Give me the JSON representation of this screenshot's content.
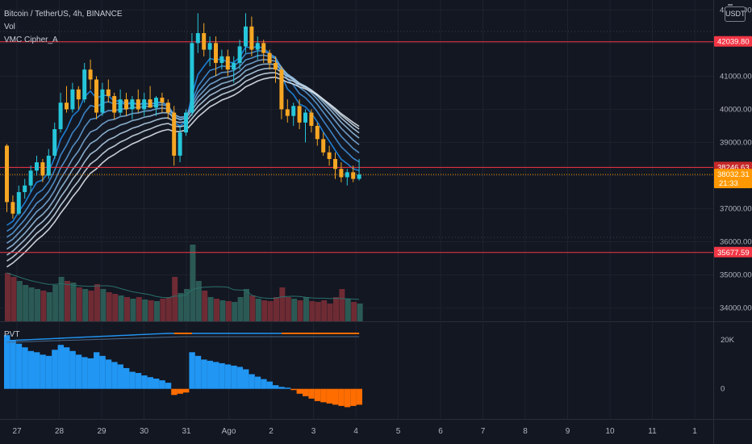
{
  "header": {
    "symbol_line": "Bitcoin / TetherUS, 4h, BINANCE",
    "vol_label": "Vol",
    "vmc_label": "VMC Cipher_A",
    "pvt_label": "PVT",
    "unit": "USDT"
  },
  "colors": {
    "background": "#131722",
    "up": "#26c6da",
    "down": "#f5a623",
    "level_line": "#f23645",
    "vol_up": "#2b5a55",
    "vol_down": "#6e2b34",
    "osc_pos": "#2196f3",
    "osc_neg": "#ff6d00",
    "pvt_line": "#2196f3",
    "price_label_bg": "#ff9800",
    "text": "#b2b5be"
  },
  "chart_data": [
    {
      "type": "candlestick",
      "title": "Bitcoin / TetherUS, 4h, BINANCE",
      "x_tick_labels": [
        "27",
        "28",
        "29",
        "30",
        "31",
        "Ago",
        "2",
        "3",
        "4",
        "5",
        "6",
        "7",
        "8",
        "9",
        "10",
        "11",
        "1"
      ],
      "y_ticks": [
        34000,
        35000,
        36000,
        37000,
        38000,
        39000,
        40000,
        41000,
        42000,
        43000
      ],
      "ylim": [
        33600,
        43300
      ],
      "candles": [
        [
          38900,
          38950,
          36900,
          37200
        ],
        [
          37200,
          37400,
          36700,
          36850
        ],
        [
          36850,
          37700,
          36800,
          37500
        ],
        [
          37500,
          37900,
          37300,
          37700
        ],
        [
          37700,
          38300,
          37500,
          38150
        ],
        [
          38150,
          38600,
          38000,
          38400
        ],
        [
          38400,
          38500,
          37800,
          38000
        ],
        [
          38000,
          38800,
          37900,
          38600
        ],
        [
          38600,
          39600,
          38500,
          39400
        ],
        [
          39400,
          40500,
          39300,
          40200
        ],
        [
          40200,
          40700,
          39900,
          40000
        ],
        [
          40000,
          40800,
          39900,
          40600
        ],
        [
          40600,
          40700,
          40000,
          40300
        ],
        [
          40300,
          41400,
          40200,
          41200
        ],
        [
          41200,
          41500,
          40600,
          40900
        ],
        [
          40900,
          41000,
          39700,
          39900
        ],
        [
          39900,
          40800,
          39800,
          40600
        ],
        [
          40600,
          40900,
          40200,
          40400
        ],
        [
          40400,
          40500,
          39700,
          39900
        ],
        [
          39900,
          40600,
          39800,
          40300
        ],
        [
          40300,
          40500,
          39800,
          40000
        ],
        [
          40000,
          40400,
          39700,
          40300
        ],
        [
          40300,
          40600,
          39900,
          40000
        ],
        [
          40000,
          40500,
          39800,
          40300
        ],
        [
          40300,
          40700,
          40100,
          40050
        ],
        [
          40050,
          40400,
          39800,
          40350
        ],
        [
          40350,
          40500,
          39900,
          40200
        ],
        [
          40200,
          40300,
          39700,
          39900
        ],
        [
          39900,
          40100,
          38300,
          38600
        ],
        [
          38600,
          39500,
          38400,
          39300
        ],
        [
          39300,
          40000,
          39200,
          39900
        ],
        [
          39900,
          42300,
          39800,
          42000
        ],
        [
          42000,
          42900,
          41700,
          42300
        ],
        [
          42300,
          42600,
          41600,
          41800
        ],
        [
          41800,
          42200,
          41300,
          42000
        ],
        [
          42000,
          42200,
          41000,
          41400
        ],
        [
          41400,
          41800,
          41200,
          41600
        ],
        [
          41600,
          41800,
          41000,
          41200
        ],
        [
          41200,
          41600,
          40800,
          41400
        ],
        [
          41400,
          42100,
          41200,
          41900
        ],
        [
          41900,
          42900,
          41700,
          42500
        ],
        [
          42500,
          42800,
          41600,
          41800
        ],
        [
          41800,
          42200,
          41500,
          42000
        ],
        [
          42000,
          42100,
          41400,
          41700
        ],
        [
          41700,
          41800,
          41200,
          41400
        ],
        [
          41400,
          41600,
          40800,
          41200
        ],
        [
          41200,
          41300,
          39700,
          40000
        ],
        [
          40000,
          40300,
          39600,
          39800
        ],
        [
          39800,
          40200,
          39500,
          40100
        ],
        [
          40100,
          40300,
          39400,
          39600
        ],
        [
          39600,
          40000,
          39000,
          39900
        ],
        [
          39900,
          40000,
          39300,
          39500
        ],
        [
          39500,
          39600,
          38900,
          39100
        ],
        [
          39100,
          39300,
          38600,
          38700
        ],
        [
          38700,
          38900,
          38300,
          38500
        ],
        [
          38500,
          38700,
          37900,
          38200
        ],
        [
          38200,
          38400,
          37800,
          37950
        ],
        [
          37950,
          38200,
          37700,
          38100
        ],
        [
          38100,
          38300,
          37800,
          37900
        ],
        [
          37900,
          38500,
          37850,
          38032.31
        ]
      ],
      "ribbon_series_count": 8,
      "horizontal_levels": [
        42039.8,
        38246.63,
        35677.59
      ],
      "price_labels": [
        {
          "value": "42039.80"
        },
        {
          "value": "38246.63"
        },
        {
          "value": "38032.31",
          "countdown": "21:33"
        },
        {
          "value": "35677.59"
        }
      ],
      "volume": [
        0.6,
        0.55,
        0.5,
        0.45,
        0.42,
        0.4,
        0.38,
        0.36,
        0.45,
        0.55,
        0.5,
        0.48,
        0.42,
        0.4,
        0.38,
        0.46,
        0.4,
        0.36,
        0.34,
        0.32,
        0.3,
        0.28,
        0.3,
        0.27,
        0.26,
        0.25,
        0.28,
        0.3,
        0.55,
        0.35,
        0.4,
        0.95,
        0.5,
        0.38,
        0.3,
        0.28,
        0.26,
        0.25,
        0.24,
        0.3,
        0.4,
        0.32,
        0.28,
        0.26,
        0.25,
        0.3,
        0.42,
        0.3,
        0.28,
        0.26,
        0.3,
        0.25,
        0.24,
        0.26,
        0.22,
        0.3,
        0.4,
        0.28,
        0.24,
        0.22
      ]
    },
    {
      "type": "bar",
      "title": "PVT",
      "y_tick_labels": [
        "20K",
        "0"
      ],
      "ylim": [
        -12000,
        27000
      ],
      "values": [
        22000,
        20000,
        18500,
        17000,
        15500,
        15000,
        14000,
        13500,
        16000,
        18000,
        17000,
        15500,
        14000,
        13000,
        12500,
        15000,
        13500,
        12000,
        11000,
        10000,
        8500,
        7000,
        6500,
        5500,
        4800,
        4200,
        3500,
        2500,
        -2500,
        -2000,
        -1500,
        15000,
        13500,
        12000,
        11500,
        11000,
        10500,
        10000,
        9500,
        9000,
        8000,
        6000,
        5000,
        4000,
        3000,
        1500,
        800,
        500,
        -500,
        -2000,
        -3000,
        -4000,
        -5000,
        -5500,
        -6000,
        -6500,
        -7000,
        -7500,
        -7000,
        -6500
      ]
    }
  ]
}
